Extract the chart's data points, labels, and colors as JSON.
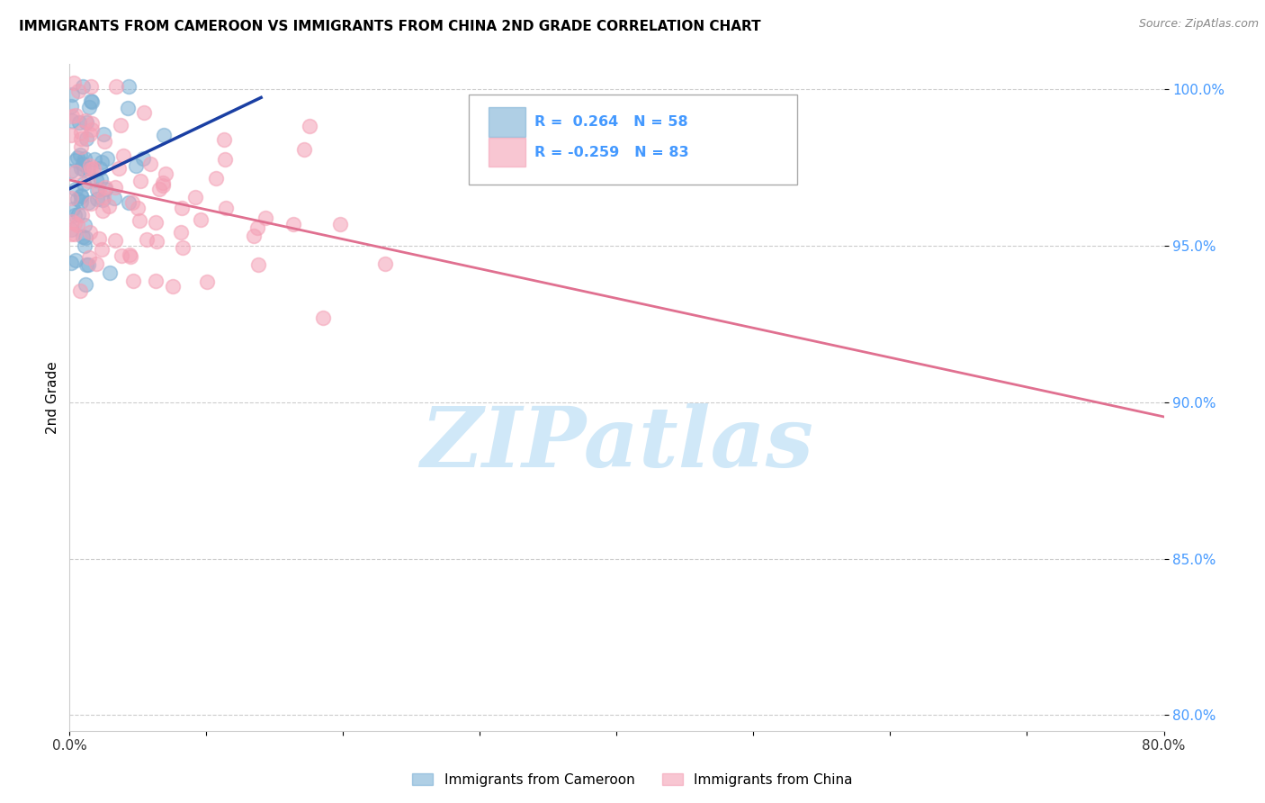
{
  "title": "IMMIGRANTS FROM CAMEROON VS IMMIGRANTS FROM CHINA 2ND GRADE CORRELATION CHART",
  "source": "Source: ZipAtlas.com",
  "ylabel": "2nd Grade",
  "xlim": [
    0.0,
    0.8
  ],
  "ylim": [
    0.795,
    1.008
  ],
  "yticks": [
    0.8,
    0.85,
    0.9,
    0.95,
    1.0
  ],
  "ytick_labels": [
    "80.0%",
    "85.0%",
    "90.0%",
    "95.0%",
    "100.0%"
  ],
  "xticks": [
    0.0,
    0.1,
    0.2,
    0.3,
    0.4,
    0.5,
    0.6,
    0.7,
    0.8
  ],
  "xtick_labels": [
    "0.0%",
    "",
    "",
    "",
    "",
    "",
    "",
    "",
    "80.0%"
  ],
  "cameroon_color": "#7bafd4",
  "china_color": "#f4a0b5",
  "cameroon_R": 0.264,
  "cameroon_N": 58,
  "china_R": -0.259,
  "china_N": 83,
  "trend_blue": "#1a3fa3",
  "trend_pink": "#e07090",
  "watermark": "ZIPatlas",
  "watermark_color": "#d0e8f8",
  "bg_color": "#ffffff",
  "grid_color": "#cccccc",
  "tick_color_y": "#4499ff",
  "tick_color_x": "#333333"
}
